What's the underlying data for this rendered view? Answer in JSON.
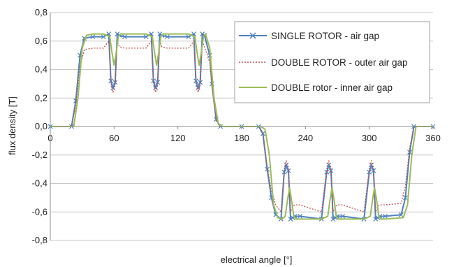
{
  "chart_data": {
    "type": "line",
    "xlabel": "electrical angle [°]",
    "ylabel": "flux density  [T]",
    "xlim": [
      0,
      360
    ],
    "ylim": [
      -0.8,
      0.8
    ],
    "x_ticks": [
      "0",
      "60",
      "120",
      "180",
      "240",
      "300",
      "360"
    ],
    "y_ticks": [
      "0,8",
      "0,6",
      "0,4",
      "0,2",
      "0,0",
      "-0,2",
      "-0,4",
      "-0,6",
      "-0,8"
    ],
    "grid": "horizontal",
    "legend_position": "top-right",
    "series": [
      {
        "name": "SINGLE ROTOR - air gap",
        "color": "#4f81bd",
        "marker": "x",
        "x": [
          0,
          20,
          24,
          28,
          32,
          40,
          50,
          55,
          57,
          59,
          61,
          63,
          65,
          70,
          90,
          95,
          97,
          99,
          101,
          103,
          105,
          110,
          130,
          135,
          137,
          139,
          141,
          143,
          145,
          150,
          152,
          156,
          160,
          180,
          196,
          200,
          204,
          208,
          212,
          217,
          220,
          222,
          224,
          226,
          228,
          230,
          235,
          255,
          260,
          262,
          264,
          266,
          268,
          270,
          275,
          295,
          300,
          302,
          304,
          306,
          308,
          310,
          315,
          330,
          334,
          338,
          342,
          360
        ],
        "y": [
          0,
          0,
          0.18,
          0.5,
          0.62,
          0.63,
          0.63,
          0.65,
          0.32,
          0.27,
          0.31,
          0.65,
          0.64,
          0.63,
          0.63,
          0.65,
          0.32,
          0.27,
          0.31,
          0.65,
          0.64,
          0.63,
          0.63,
          0.65,
          0.32,
          0.27,
          0.31,
          0.65,
          0.64,
          0.5,
          0.3,
          0.05,
          0,
          0,
          0,
          -0.05,
          -0.3,
          -0.5,
          -0.62,
          -0.65,
          -0.32,
          -0.27,
          -0.31,
          -0.65,
          -0.64,
          -0.63,
          -0.63,
          -0.65,
          -0.32,
          -0.27,
          -0.31,
          -0.65,
          -0.64,
          -0.63,
          -0.63,
          -0.65,
          -0.32,
          -0.27,
          -0.31,
          -0.65,
          -0.64,
          -0.63,
          -0.63,
          -0.62,
          -0.5,
          -0.18,
          0,
          0
        ]
      },
      {
        "name": "DOUBLE ROTOR - outer air gap",
        "color": "#c0504d",
        "dash": "2,2",
        "x": [
          0,
          20,
          24,
          28,
          32,
          40,
          50,
          55,
          57,
          59,
          61,
          63,
          65,
          70,
          90,
          95,
          97,
          99,
          101,
          103,
          105,
          110,
          130,
          135,
          137,
          139,
          141,
          143,
          145,
          150,
          152,
          156,
          160,
          180,
          196,
          200,
          204,
          208,
          212,
          217,
          220,
          222,
          224,
          226,
          228,
          230,
          235,
          255,
          260,
          262,
          264,
          266,
          268,
          270,
          275,
          295,
          300,
          302,
          304,
          306,
          308,
          310,
          315,
          330,
          334,
          338,
          342,
          360
        ],
        "y": [
          0,
          0,
          0.15,
          0.42,
          0.54,
          0.55,
          0.55,
          0.6,
          0.3,
          0.24,
          0.29,
          0.6,
          0.56,
          0.55,
          0.55,
          0.6,
          0.3,
          0.24,
          0.29,
          0.6,
          0.56,
          0.55,
          0.55,
          0.6,
          0.3,
          0.24,
          0.29,
          0.6,
          0.56,
          0.45,
          0.28,
          0.04,
          0,
          0,
          0,
          -0.04,
          -0.28,
          -0.45,
          -0.55,
          -0.6,
          -0.3,
          -0.24,
          -0.29,
          -0.6,
          -0.56,
          -0.55,
          -0.55,
          -0.6,
          -0.3,
          -0.24,
          -0.29,
          -0.6,
          -0.56,
          -0.55,
          -0.55,
          -0.6,
          -0.3,
          -0.24,
          -0.29,
          -0.6,
          -0.56,
          -0.55,
          -0.55,
          -0.54,
          -0.42,
          -0.15,
          0,
          0
        ]
      },
      {
        "name": "DOUBLE rotor - inner air gap",
        "color": "#9bbb59",
        "x": [
          0,
          22,
          26,
          30,
          34,
          40,
          50,
          56,
          58,
          60,
          62,
          64,
          66,
          70,
          90,
          96,
          98,
          100,
          102,
          104,
          106,
          110,
          130,
          136,
          138,
          140,
          142,
          144,
          146,
          150,
          154,
          158,
          162,
          180,
          198,
          202,
          206,
          210,
          214,
          218,
          221,
          223,
          225,
          227,
          229,
          231,
          235,
          255,
          261,
          263,
          265,
          267,
          269,
          271,
          275,
          295,
          301,
          303,
          305,
          307,
          309,
          311,
          315,
          332,
          336,
          340,
          344,
          360
        ],
        "y": [
          0,
          0,
          0.2,
          0.55,
          0.64,
          0.65,
          0.65,
          0.63,
          0.52,
          0.43,
          0.52,
          0.63,
          0.65,
          0.65,
          0.65,
          0.63,
          0.52,
          0.43,
          0.52,
          0.63,
          0.65,
          0.65,
          0.65,
          0.63,
          0.52,
          0.43,
          0.52,
          0.63,
          0.65,
          0.55,
          0.2,
          0.02,
          0,
          0,
          0,
          -0.02,
          -0.2,
          -0.55,
          -0.64,
          -0.65,
          -0.63,
          -0.52,
          -0.43,
          -0.52,
          -0.63,
          -0.65,
          -0.65,
          -0.65,
          -0.63,
          -0.52,
          -0.43,
          -0.52,
          -0.63,
          -0.65,
          -0.65,
          -0.65,
          -0.63,
          -0.52,
          -0.43,
          -0.52,
          -0.63,
          -0.65,
          -0.65,
          -0.64,
          -0.55,
          -0.2,
          0,
          0
        ]
      }
    ]
  }
}
